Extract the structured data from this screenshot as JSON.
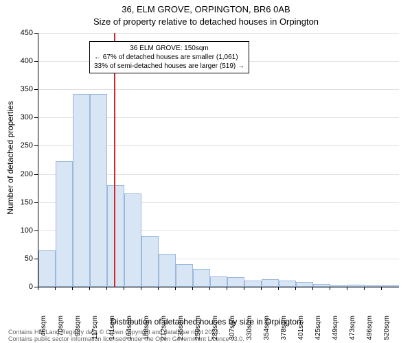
{
  "chart": {
    "type": "histogram",
    "title_line1": "36, ELM GROVE, ORPINGTON, BR6 0AB",
    "title_line2": "Size of property relative to detached houses in Orpington",
    "y_axis": {
      "label": "Number of detached properties",
      "min": 0,
      "max": 450,
      "ticks": [
        0,
        50,
        100,
        150,
        200,
        250,
        300,
        350,
        400,
        450
      ]
    },
    "x_axis": {
      "label": "Distribution of detached houses by size in Orpington",
      "tick_labels": [
        "46sqm",
        "70sqm",
        "93sqm",
        "117sqm",
        "141sqm",
        "164sqm",
        "188sqm",
        "212sqm",
        "235sqm",
        "259sqm",
        "283sqm",
        "307sqm",
        "330sqm",
        "354sqm",
        "378sqm",
        "401sqm",
        "425sqm",
        "449sqm",
        "473sqm",
        "496sqm",
        "520sqm"
      ]
    },
    "bars": {
      "values": [
        65,
        222,
        342,
        342,
        180,
        165,
        90,
        58,
        40,
        32,
        18,
        17,
        11,
        13,
        11,
        9,
        5,
        3,
        4,
        3,
        2
      ],
      "fill_color": "#d8e5f5",
      "border_color": "#9bb8db"
    },
    "reference_line": {
      "position_index": 4.4,
      "color": "#d62728"
    },
    "annotation": {
      "line1": "36 ELM GROVE: 150sqm",
      "line2": "← 67% of detached houses are smaller (1,061)",
      "line3": "33% of semi-detached houses are larger (519) →",
      "bg": "#ffffff",
      "border": "#000000"
    },
    "colors": {
      "background": "#ffffff",
      "grid": "#e0e0e0",
      "axis": "#000000",
      "text": "#000000"
    },
    "footer": {
      "line1": "Contains HM Land Registry data © Crown copyright and database right 2024.",
      "line2": "Contains public sector information licensed under the Open Government Licence v3.0."
    }
  }
}
